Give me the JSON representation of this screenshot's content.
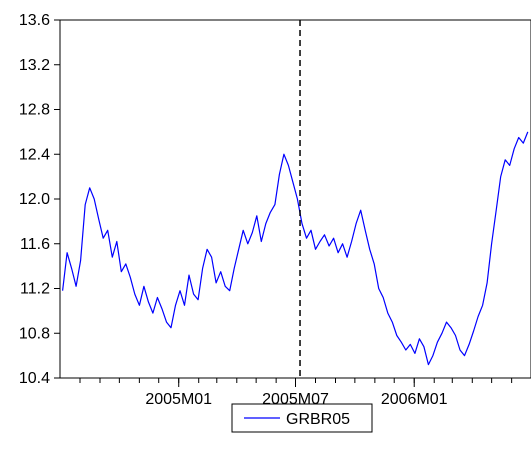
{
  "chart_data": {
    "type": "line",
    "title": "",
    "xlabel": "",
    "ylabel": "",
    "ylim": [
      10.4,
      13.6
    ],
    "yticks": [
      "10.4",
      "10.8",
      "11.2",
      "11.6",
      "12.0",
      "12.4",
      "12.8",
      "13.2",
      "13.6"
    ],
    "x_tick_labels": [
      {
        "label": "2005M01",
        "x": "2005-01-01"
      },
      {
        "label": "2005M07",
        "x": "2005-07-01"
      },
      {
        "label": "2006M01",
        "x": "2006-01-01"
      }
    ],
    "xlim": [
      "2004-07-01",
      "2006-07-01"
    ],
    "grid": false,
    "legend_position": "bottom-center",
    "reference_line": {
      "x": "2005-07-08",
      "style": "dashed",
      "color": "#000000"
    },
    "series": [
      {
        "name": "GRBR05",
        "color": "#0000ff",
        "x": [
          "2004-07-05",
          "2004-07-12",
          "2004-07-19",
          "2004-07-26",
          "2004-08-02",
          "2004-08-09",
          "2004-08-16",
          "2004-08-23",
          "2004-08-30",
          "2004-09-06",
          "2004-09-13",
          "2004-09-20",
          "2004-09-27",
          "2004-10-04",
          "2004-10-11",
          "2004-10-18",
          "2004-10-25",
          "2004-11-01",
          "2004-11-08",
          "2004-11-15",
          "2004-11-22",
          "2004-11-29",
          "2004-12-06",
          "2004-12-13",
          "2004-12-20",
          "2004-12-27",
          "2005-01-03",
          "2005-01-10",
          "2005-01-17",
          "2005-01-24",
          "2005-01-31",
          "2005-02-07",
          "2005-02-14",
          "2005-02-21",
          "2005-02-28",
          "2005-03-07",
          "2005-03-14",
          "2005-03-21",
          "2005-03-28",
          "2005-04-04",
          "2005-04-11",
          "2005-04-18",
          "2005-04-25",
          "2005-05-02",
          "2005-05-09",
          "2005-05-16",
          "2005-05-23",
          "2005-05-30",
          "2005-06-06",
          "2005-06-13",
          "2005-06-20",
          "2005-06-27",
          "2005-07-04",
          "2005-07-11",
          "2005-07-18",
          "2005-07-25",
          "2005-08-01",
          "2005-08-08",
          "2005-08-15",
          "2005-08-22",
          "2005-08-29",
          "2005-09-05",
          "2005-09-12",
          "2005-09-19",
          "2005-09-26",
          "2005-10-03",
          "2005-10-10",
          "2005-10-17",
          "2005-10-24",
          "2005-10-31",
          "2005-11-07",
          "2005-11-14",
          "2005-11-21",
          "2005-11-28",
          "2005-12-05",
          "2005-12-12",
          "2005-12-19",
          "2005-12-26",
          "2006-01-02",
          "2006-01-09",
          "2006-01-16",
          "2006-01-23",
          "2006-01-30",
          "2006-02-06",
          "2006-02-13",
          "2006-02-20",
          "2006-02-27",
          "2006-03-06",
          "2006-03-13",
          "2006-03-20",
          "2006-03-27",
          "2006-04-03",
          "2006-04-10",
          "2006-04-17",
          "2006-04-24",
          "2006-05-01",
          "2006-05-08",
          "2006-05-15",
          "2006-05-22",
          "2006-05-29",
          "2006-06-05",
          "2006-06-12",
          "2006-06-19",
          "2006-06-26"
        ],
        "values": [
          11.18,
          11.52,
          11.38,
          11.22,
          11.45,
          11.95,
          12.1,
          12.0,
          11.82,
          11.65,
          11.72,
          11.48,
          11.62,
          11.35,
          11.42,
          11.3,
          11.15,
          11.05,
          11.22,
          11.08,
          10.98,
          11.12,
          11.02,
          10.9,
          10.85,
          11.05,
          11.18,
          11.05,
          11.32,
          11.15,
          11.1,
          11.38,
          11.55,
          11.48,
          11.25,
          11.35,
          11.22,
          11.18,
          11.38,
          11.55,
          11.72,
          11.6,
          11.7,
          11.85,
          11.62,
          11.78,
          11.88,
          11.95,
          12.22,
          12.4,
          12.3,
          12.15,
          12.0,
          11.78,
          11.65,
          11.72,
          11.55,
          11.62,
          11.68,
          11.58,
          11.65,
          11.52,
          11.6,
          11.48,
          11.62,
          11.78,
          11.9,
          11.72,
          11.55,
          11.42,
          11.2,
          11.12,
          10.98,
          10.9,
          10.78,
          10.72,
          10.65,
          10.7,
          10.62,
          10.75,
          10.68,
          10.52,
          10.6,
          10.72,
          10.8,
          10.9,
          10.85,
          10.78,
          10.65,
          10.6,
          10.7,
          10.82,
          10.95,
          11.05,
          11.25,
          11.6,
          11.9,
          12.2,
          12.35,
          12.3,
          12.45,
          12.55,
          12.5,
          12.6
        ]
      }
    ]
  }
}
